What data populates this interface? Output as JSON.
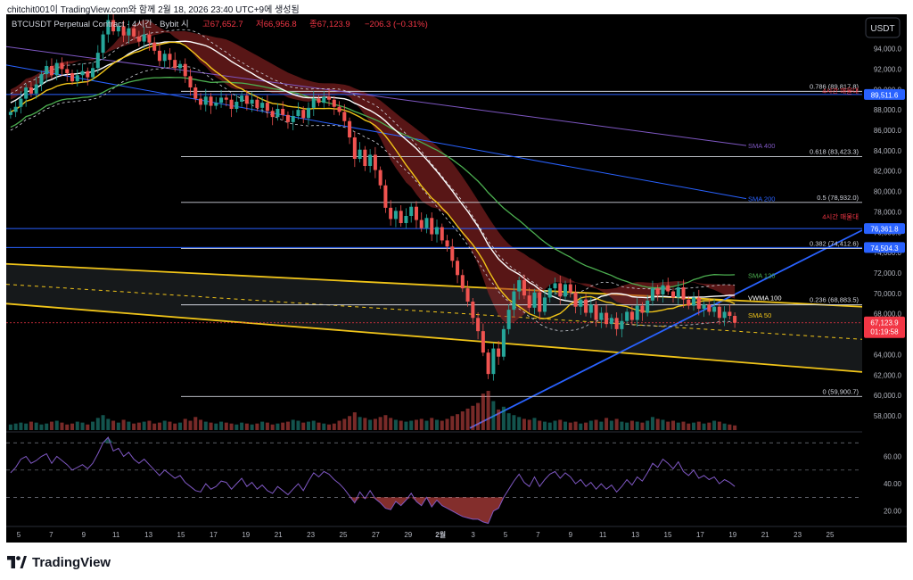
{
  "header": {
    "caption": "chitchit001이 TradingView.com와 함께 2월 18, 2026 23:40 UTC+9에 생성됨"
  },
  "footer": {
    "brand": "TradingView"
  },
  "chart_data": {
    "type": "candlestick",
    "symbol": "BTCUSDT Perpetual Contract · 4시간 · Bybit",
    "ohlc_label": {
      "open": "시",
      "high": "고67,652.7",
      "low": "저66,956.8",
      "close": "종67,123.9",
      "change": "−206.3 (−0.31%)"
    },
    "currency": "USDT",
    "x_labels": [
      "5",
      "7",
      "9",
      "11",
      "13",
      "15",
      "17",
      "19",
      "21",
      "23",
      "25",
      "27",
      "29",
      "2월",
      "3",
      "5",
      "7",
      "9",
      "11",
      "13",
      "15",
      "17",
      "19",
      "21",
      "23",
      "25"
    ],
    "y_ticks": [
      58000,
      60000,
      62000,
      64000,
      66000,
      68000,
      70000,
      72000,
      74000,
      76000,
      78000,
      80000,
      82000,
      84000,
      86000,
      88000,
      90000,
      92000,
      94000
    ],
    "y_tick_labels": [
      "58,000.0",
      "60,000.0",
      "62,000.0",
      "64,000.0",
      "66,000.0",
      "68,000.0",
      "70,000.0",
      "72,000.0",
      "74,000.0",
      "76,000.0",
      "78,000.0",
      "80,000.0",
      "82,000.0",
      "84,000.0",
      "86,000.0",
      "88,000.0",
      "90,000.0",
      "92,000.0",
      "94,000.0"
    ],
    "ylim": [
      56600,
      97200
    ],
    "fib_levels": [
      {
        "label": "0.786 (89,817.8)",
        "value": 89817.8
      },
      {
        "label": "0.618 (83,423.3)",
        "value": 83423.3
      },
      {
        "label": "0.5 (78,932.0)",
        "value": 78932.0
      },
      {
        "label": "0.382 (74,412.6)",
        "value": 74412.6
      },
      {
        "label": "0.236 (68,883.5)",
        "value": 68883.5
      },
      {
        "label": "0 (59,900.7)",
        "value": 59900.7
      }
    ],
    "fib_top_note": "4시간 매물대",
    "mid_note": "4시간 매물대",
    "horizontal_lines": [
      {
        "label": "89,511.6",
        "value": 89511.6,
        "color": "#2962ff"
      },
      {
        "label": "76,361.8",
        "value": 76361.8,
        "color": "#2962ff"
      },
      {
        "label": "74,504.3",
        "value": 74504.3,
        "color": "#2962ff"
      }
    ],
    "last_price": {
      "value": 67123.9,
      "label": "67,123.9",
      "countdown": "01:19:58",
      "color": "#f23645"
    },
    "indicator_labels": [
      {
        "name": "SMA 400",
        "value": 84500,
        "color": "#7e57c2"
      },
      {
        "name": "SMA 200",
        "value": 79300,
        "color": "#2962ff"
      },
      {
        "name": "SMA 120",
        "value": 71800,
        "color": "#4caf50"
      },
      {
        "name": "VWMA 100",
        "value": 69600,
        "color": "#ffffff"
      },
      {
        "name": "SMA 50",
        "value": 67900,
        "color": "#f0c419"
      }
    ],
    "rsi": {
      "ticks": [
        20,
        40,
        60
      ],
      "tick_labels": [
        "20.00",
        "40.00",
        "60.00"
      ],
      "ylim": [
        10,
        78
      ],
      "bands": [
        30,
        50,
        70
      ]
    },
    "candles_series": {
      "name": "BTCUSDT 4h",
      "closes": [
        87800,
        88300,
        89100,
        90200,
        89600,
        90500,
        91500,
        92300,
        91400,
        92600,
        92000,
        91600,
        90800,
        91400,
        91800,
        91200,
        92100,
        93600,
        95400,
        96800,
        95700,
        96200,
        95300,
        96000,
        95200,
        94700,
        95400,
        94600,
        93800,
        92800,
        93500,
        92900,
        92100,
        92500,
        91300,
        90200,
        89100,
        88500,
        89300,
        88400,
        88700,
        89200,
        89000,
        88100,
        88800,
        89400,
        88600,
        89000,
        88200,
        88700,
        87900,
        87300,
        88100,
        87500,
        86800,
        87400,
        88000,
        87200,
        88200,
        89100,
        88700,
        89300,
        89000,
        88300,
        87800,
        86900,
        85300,
        83200,
        84100,
        82500,
        83600,
        82100,
        80600,
        78400,
        77300,
        78100,
        76900,
        77600,
        78500,
        77200,
        76400,
        77400,
        75800,
        76500,
        75200,
        74600,
        73200,
        71800,
        70500,
        69200,
        67600,
        66300,
        64200,
        62100,
        64600,
        63800,
        66500,
        68400,
        70200,
        71300,
        69800,
        68600,
        70100,
        68200,
        69600,
        70500,
        71000,
        69700,
        70900,
        70100,
        68700,
        69400,
        68100,
        68900,
        67400,
        68100,
        67000,
        67600,
        66500,
        67300,
        68200,
        67400,
        68800,
        68100,
        69300,
        70500,
        69900,
        70800,
        70200,
        69600,
        70600,
        69400,
        68800,
        69600,
        68500,
        68900,
        68200,
        68700,
        67600,
        68200,
        67800,
        67123.9
      ],
      "volumes": [
        0.6,
        0.7,
        0.8,
        0.7,
        0.9,
        0.8,
        0.6,
        0.7,
        0.9,
        1.0,
        0.8,
        0.6,
        0.7,
        0.9,
        0.8,
        0.6,
        0.9,
        1.3,
        1.6,
        1.2,
        1.0,
        0.8,
        1.1,
        0.9,
        0.7,
        0.8,
        0.9,
        1.0,
        0.7,
        0.8,
        1.0,
        0.9,
        0.7,
        0.8,
        1.2,
        1.0,
        1.4,
        1.1,
        0.9,
        0.8,
        0.7,
        0.9,
        0.8,
        0.7,
        0.6,
        0.8,
        0.7,
        0.6,
        0.7,
        0.9,
        0.8,
        0.6,
        0.7,
        0.8,
        0.9,
        1.1,
        1.0,
        0.8,
        0.9,
        1.0,
        0.8,
        0.7,
        0.6,
        0.7,
        1.0,
        1.2,
        1.5,
        1.9,
        1.4,
        1.3,
        1.1,
        1.2,
        1.4,
        1.6,
        1.3,
        1.1,
        1.0,
        0.9,
        1.0,
        1.1,
        1.2,
        1.0,
        1.3,
        1.1,
        1.0,
        1.2,
        1.5,
        1.7,
        2.0,
        2.3,
        2.6,
        2.9,
        3.9,
        4.2,
        3.1,
        2.2,
        2.5,
        1.8,
        1.6,
        1.4,
        1.2,
        1.1,
        1.3,
        1.0,
        0.9,
        0.8,
        1.0,
        1.1,
        0.9,
        0.8,
        0.9,
        0.7,
        0.8,
        1.0,
        1.1,
        0.9,
        1.3,
        1.0,
        1.2,
        0.9,
        0.8,
        1.0,
        0.9,
        0.8,
        1.0,
        1.4,
        1.2,
        1.1,
        0.9,
        1.0,
        0.8,
        0.9,
        0.7,
        0.8,
        0.9,
        0.7,
        0.8,
        1.0,
        0.9,
        0.7,
        0.6,
        0.5
      ]
    },
    "rsi_series": {
      "name": "RSI",
      "values": [
        48,
        52,
        58,
        60,
        55,
        57,
        60,
        62,
        55,
        60,
        57,
        54,
        50,
        52,
        54,
        51,
        55,
        62,
        70,
        74,
        64,
        66,
        60,
        63,
        58,
        55,
        58,
        54,
        50,
        46,
        50,
        47,
        44,
        46,
        41,
        38,
        35,
        34,
        40,
        36,
        38,
        42,
        41,
        36,
        40,
        44,
        38,
        41,
        36,
        39,
        35,
        33,
        38,
        35,
        32,
        36,
        40,
        35,
        42,
        48,
        45,
        49,
        47,
        43,
        40,
        36,
        31,
        26,
        34,
        29,
        35,
        29,
        26,
        22,
        21,
        27,
        24,
        28,
        33,
        27,
        24,
        30,
        23,
        28,
        24,
        22,
        20,
        18,
        16,
        15,
        14,
        14,
        12,
        11,
        20,
        22,
        30,
        36,
        42,
        47,
        41,
        38,
        45,
        38,
        43,
        47,
        49,
        44,
        48,
        45,
        40,
        43,
        38,
        41,
        36,
        40,
        36,
        39,
        34,
        38,
        43,
        39,
        45,
        42,
        48,
        55,
        52,
        58,
        55,
        51,
        56,
        49,
        46,
        50,
        44,
        46,
        43,
        45,
        40,
        43,
        41,
        38
      ]
    }
  }
}
